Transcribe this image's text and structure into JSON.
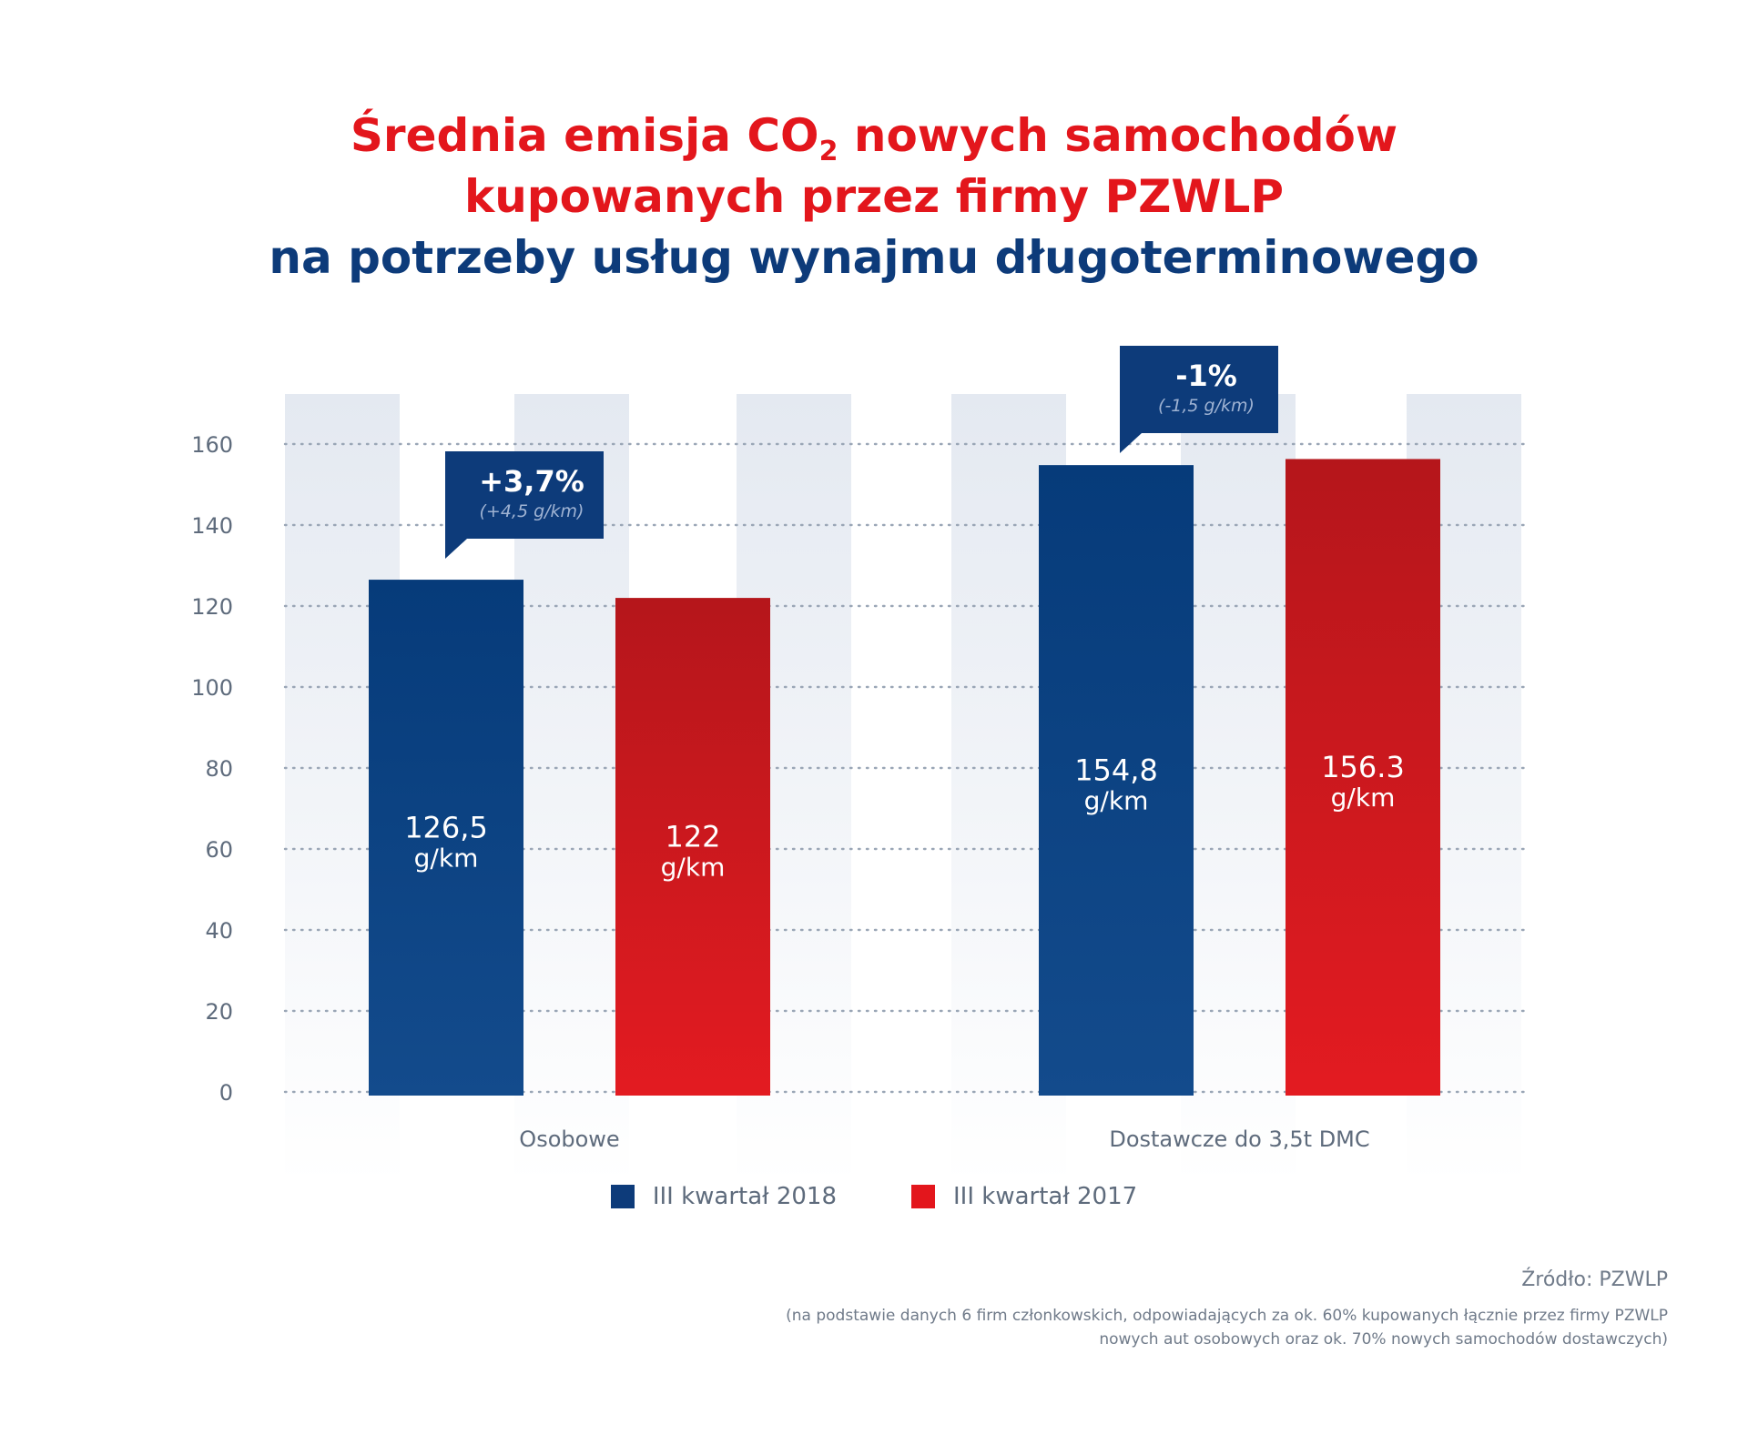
{
  "title": {
    "line1_prefix": "Średnia emisja CO",
    "line1_sub": "2",
    "line1_suffix": " nowych samochodów",
    "line2": "kupowanych przez firmy PZWLP",
    "line3": "na potrzeby usług wynajmu długoterminowego"
  },
  "chart_data": {
    "type": "bar",
    "categories": [
      "Osobowe",
      "Dostawcze do 3,5t DMC"
    ],
    "series": [
      {
        "name": "III kwartał 2018",
        "values": [
          126.5,
          154.8
        ],
        "labels": [
          "126,5",
          "154,8"
        ],
        "color": "#0d3b7a"
      },
      {
        "name": "III kwartał 2017",
        "values": [
          122,
          156.3
        ],
        "labels": [
          "122",
          "156.3"
        ],
        "color": "#e3161c"
      }
    ],
    "unit": "g/km",
    "ylim": [
      0,
      160
    ],
    "yticks": [
      0,
      20,
      40,
      60,
      80,
      100,
      120,
      140,
      160
    ],
    "grid": true,
    "legend": "bottom",
    "annotations": [
      {
        "category": "Osobowe",
        "main": "+3,7%",
        "sub": "(+4,5 g/km)"
      },
      {
        "category": "Dostawcze do 3,5t DMC",
        "main": "-1%",
        "sub": "(-1,5 g/km)"
      }
    ]
  },
  "source": {
    "label": "Źródło: PZWLP",
    "note": "(na podstawie danych 6 firm członkowskich, odpowiadających za ok. 60% kupowanych łącznie przez firmy PZWLP nowych aut osobowych oraz ok. 70% nowych samochodów dostawczych)"
  },
  "colors": {
    "blue": "#0d3b7a",
    "red": "#e3161c",
    "axis_text": "#5e6b7c"
  }
}
